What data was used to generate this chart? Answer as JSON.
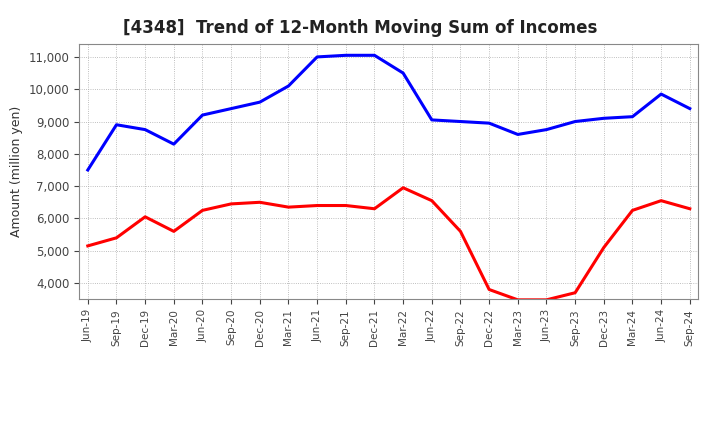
{
  "title": "[4348]  Trend of 12-Month Moving Sum of Incomes",
  "ylabel": "Amount (million yen)",
  "x_labels": [
    "Jun-19",
    "Sep-19",
    "Dec-19",
    "Mar-20",
    "Jun-20",
    "Sep-20",
    "Dec-20",
    "Mar-21",
    "Jun-21",
    "Sep-21",
    "Dec-21",
    "Mar-22",
    "Jun-22",
    "Sep-22",
    "Dec-22",
    "Mar-23",
    "Jun-23",
    "Sep-23",
    "Dec-23",
    "Mar-24",
    "Jun-24",
    "Sep-24"
  ],
  "ordinary_income": [
    7500,
    8900,
    8750,
    8300,
    9200,
    9400,
    9600,
    10100,
    11000,
    11050,
    11050,
    10500,
    9050,
    9000,
    8950,
    8600,
    8750,
    9000,
    9100,
    9150,
    9850,
    9400
  ],
  "net_income": [
    5150,
    5400,
    6050,
    5600,
    6250,
    6450,
    6500,
    6350,
    6400,
    6400,
    6300,
    6950,
    6550,
    5600,
    3800,
    3480,
    3480,
    3700,
    5100,
    6250,
    6550,
    6300
  ],
  "ordinary_color": "#0000FF",
  "net_color": "#FF0000",
  "ylim_min": 3500,
  "ylim_max": 11400,
  "yticks": [
    4000,
    5000,
    6000,
    7000,
    8000,
    9000,
    10000,
    11000
  ],
  "bg_color": "#FFFFFF",
  "plot_bg_color": "#FFFFFF",
  "grid_color": "#AAAAAA",
  "line_width": 2.2,
  "title_fontsize": 12
}
